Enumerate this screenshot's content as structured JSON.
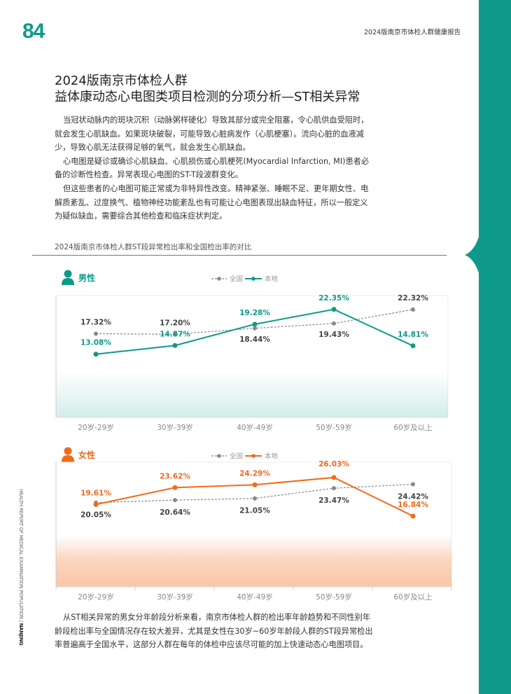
{
  "page_number": "84",
  "header": "2024版南京市体检人群健康报告",
  "title_lines": [
    "2024版南京市体检人群",
    "益体康动态心电图类项目检测的分项分析—ST相关异常"
  ],
  "body_paragraphs": [
    "当冠状动脉内的斑块沉积（动脉粥样硬化）导致其部分或完全阻塞，令心肌供血受阻时，就会发生心肌缺血。如果斑块破裂，可能导致心脏病发作（心肌梗塞）。流向心脏的血液减少，导致心肌无法获得足够的氧气，就会发生心肌缺血。",
    "心电图是疑诊或确诊心肌缺血、心肌损伤或心肌梗死(Myocardial Infarction, MI)患者必备的诊断性检查。异常表现心电图的ST-T段波群变化。",
    "但这些患者的心电图可能正常或为非特异性改变。精神紧张、睡眠不足、更年期女性、电解质紊乱、过度换气、植物神经功能紊乱也有可能让心电图表现出缺血特征，所以一般定义为疑似缺血，需要综合其他检查和临床症状判定。"
  ],
  "chart_section_title": "2024版南京市体检人群ST段异常检出率和全国检出率的对比",
  "side_text": "HEALTH REPORT OF MEDICAL EXAMINATION POPULATION",
  "side_text_city": "NANJING",
  "conclusion": "从ST相关异常的男女分年龄段分析来看，南京市体检人群的检出率年龄趋势和不同性别年龄段检出率与全国情况存在较大差异，尤其是女性在30岁~60岁年龄段人群的ST段异常检出率普遍高于全国水平，这部分人群在每年的体检中应该尽可能的加上快速动态心电图项目。",
  "colors": {
    "teal": "#0e9a8a",
    "orange": "#f26a1b",
    "gray": "#888888"
  },
  "chart_data": [
    {
      "type": "line",
      "title": "男性",
      "icon": "male-user-icon",
      "categories": [
        "20岁-29岁",
        "30岁-39岁",
        "40岁-49岁",
        "50岁-59岁",
        "60岁及以上"
      ],
      "series": [
        {
          "name": "全国",
          "values": [
            17.32,
            17.2,
            18.44,
            19.43,
            22.32
          ],
          "labels": [
            "17.32%",
            "17.20%",
            "18.44%",
            "19.43%",
            "22.32%"
          ],
          "style": "dashed",
          "color": "#888888"
        },
        {
          "name": "本地",
          "values": [
            13.08,
            14.87,
            19.28,
            22.35,
            14.81
          ],
          "labels": [
            "13.08%",
            "14.87%",
            "19.28%",
            "22.35%",
            "14.81%"
          ],
          "style": "solid",
          "color": "#0e9a8a"
        }
      ],
      "ylabel": "",
      "xlabel": "",
      "grid": false,
      "legend": "top-center"
    },
    {
      "type": "line",
      "title": "女性",
      "icon": "female-user-icon",
      "categories": [
        "20岁-29岁",
        "30岁-39岁",
        "40岁-49岁",
        "50岁-59岁",
        "60岁及以上"
      ],
      "series": [
        {
          "name": "全国",
          "values": [
            20.05,
            20.64,
            21.05,
            23.47,
            24.42
          ],
          "labels": [
            "20.05%",
            "20.64%",
            "21.05%",
            "23.47%",
            "24.42%"
          ],
          "style": "dashed",
          "color": "#888888"
        },
        {
          "name": "本地",
          "values": [
            19.61,
            23.62,
            24.29,
            26.03,
            16.84
          ],
          "labels": [
            "19.61%",
            "23.62%",
            "24.29%",
            "26.03%",
            "16.84%"
          ],
          "style": "solid",
          "color": "#f26a1b"
        }
      ],
      "ylabel": "",
      "xlabel": "",
      "grid": false,
      "legend": "top-center"
    }
  ]
}
